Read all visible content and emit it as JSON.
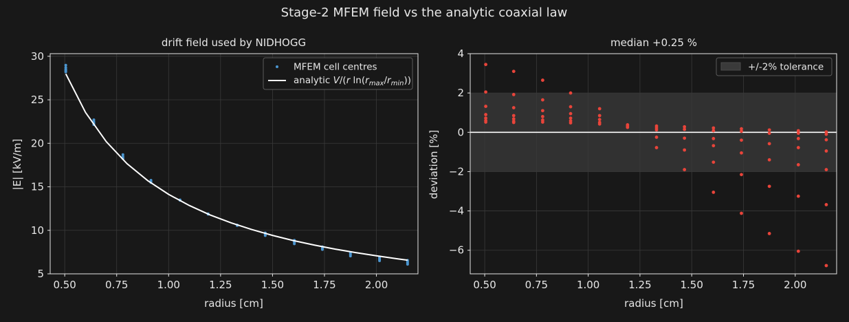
{
  "figure": {
    "suptitle": "Stage-2 MFEM field vs the analytic coaxial law",
    "colors": {
      "background": "#181818",
      "points_left": "#4b95cf",
      "points_right": "#e8443a",
      "line": "#ffffff",
      "band": "#3a3a3a",
      "grid": "#3a3a3a",
      "spine": "#e6e6e6"
    }
  },
  "chart_data": [
    {
      "type": "scatter",
      "title": "drift field used by NIDHOGG",
      "xlabel": "radius [cm]",
      "ylabel": "|E| [kV/m]",
      "xlim": [
        0.43,
        2.2
      ],
      "ylim": [
        5,
        30.3
      ],
      "xticks": [
        0.5,
        0.75,
        1.0,
        1.25,
        1.5,
        1.75,
        2.0
      ],
      "xtick_labels": [
        "0.50",
        "0.75",
        "1.00",
        "1.25",
        "1.50",
        "1.75",
        "2.00"
      ],
      "yticks": [
        5,
        10,
        15,
        20,
        25,
        30
      ],
      "ytick_labels": [
        "5",
        "10",
        "15",
        "20",
        "25",
        "30"
      ],
      "grid": true,
      "legend_position": "top-right",
      "legend": [
        "MFEM cell centres",
        "analytic V/(r ln(r_max/r_min))"
      ],
      "scatter_points": [
        [
          0.505,
          28.98
        ],
        [
          0.505,
          28.7
        ],
        [
          0.505,
          28.5
        ],
        [
          0.505,
          28.4
        ],
        [
          0.505,
          28.3
        ],
        [
          0.505,
          28.2
        ],
        [
          0.64,
          22.7
        ],
        [
          0.64,
          22.5
        ],
        [
          0.64,
          22.35
        ],
        [
          0.64,
          22.25
        ],
        [
          0.64,
          22.15
        ],
        [
          0.78,
          18.7
        ],
        [
          0.78,
          18.5
        ],
        [
          0.78,
          18.35
        ],
        [
          0.78,
          18.25
        ],
        [
          0.915,
          15.75
        ],
        [
          0.915,
          15.6
        ],
        [
          0.915,
          15.5
        ],
        [
          1.055,
          13.5
        ],
        [
          1.055,
          13.45
        ],
        [
          1.19,
          11.9
        ],
        [
          1.19,
          11.85
        ],
        [
          1.33,
          10.6
        ],
        [
          1.33,
          10.55
        ],
        [
          1.465,
          9.7
        ],
        [
          1.465,
          9.6
        ],
        [
          1.465,
          9.5
        ],
        [
          1.465,
          9.4
        ],
        [
          1.605,
          8.85
        ],
        [
          1.605,
          8.75
        ],
        [
          1.605,
          8.6
        ],
        [
          1.605,
          8.45
        ],
        [
          1.74,
          8.1
        ],
        [
          1.74,
          8.0
        ],
        [
          1.74,
          7.9
        ],
        [
          1.74,
          7.8
        ],
        [
          1.875,
          7.45
        ],
        [
          1.875,
          7.3
        ],
        [
          1.875,
          7.2
        ],
        [
          1.875,
          7.05
        ],
        [
          2.015,
          6.95
        ],
        [
          2.015,
          6.8
        ],
        [
          2.015,
          6.65
        ],
        [
          2.015,
          6.5
        ],
        [
          2.15,
          6.55
        ],
        [
          2.15,
          6.4
        ],
        [
          2.15,
          6.25
        ],
        [
          2.15,
          6.1
        ]
      ],
      "analytic_line": {
        "x": [
          0.505,
          0.6,
          0.7,
          0.8,
          0.9,
          1.0,
          1.1,
          1.2,
          1.3,
          1.4,
          1.5,
          1.6,
          1.7,
          1.8,
          1.9,
          2.0,
          2.1,
          2.15
        ],
        "y": [
          27.98,
          23.55,
          20.19,
          17.66,
          15.7,
          14.13,
          12.85,
          11.77,
          10.87,
          10.09,
          9.42,
          8.83,
          8.31,
          7.85,
          7.44,
          7.07,
          6.73,
          6.57
        ]
      }
    },
    {
      "type": "scatter",
      "title": "median +0.25 %",
      "xlabel": "radius [cm]",
      "ylabel": "deviation [%]",
      "xlim": [
        0.43,
        2.2
      ],
      "ylim": [
        -7.2,
        4.0
      ],
      "xticks": [
        0.5,
        0.75,
        1.0,
        1.25,
        1.5,
        1.75,
        2.0
      ],
      "xtick_labels": [
        "0.50",
        "0.75",
        "1.00",
        "1.25",
        "1.50",
        "1.75",
        "2.00"
      ],
      "yticks": [
        -6,
        -4,
        -2,
        0,
        2,
        4
      ],
      "ytick_labels": [
        "−6",
        "−4",
        "−2",
        "0",
        "2",
        "4"
      ],
      "grid": true,
      "legend_position": "top-right",
      "legend": [
        "+/-2% tolerance"
      ],
      "tolerance_band": [
        -2,
        2
      ],
      "zero_line": 0,
      "scatter_points": [
        [
          0.505,
          3.45
        ],
        [
          0.505,
          2.05
        ],
        [
          0.505,
          1.32
        ],
        [
          0.505,
          0.9
        ],
        [
          0.505,
          0.72
        ],
        [
          0.505,
          0.6
        ],
        [
          0.505,
          0.52
        ],
        [
          0.64,
          3.1
        ],
        [
          0.64,
          1.92
        ],
        [
          0.64,
          1.25
        ],
        [
          0.64,
          0.85
        ],
        [
          0.64,
          0.68
        ],
        [
          0.64,
          0.56
        ],
        [
          0.64,
          0.5
        ],
        [
          0.78,
          2.65
        ],
        [
          0.78,
          1.65
        ],
        [
          0.78,
          1.1
        ],
        [
          0.78,
          0.8
        ],
        [
          0.78,
          0.62
        ],
        [
          0.78,
          0.52
        ],
        [
          0.915,
          2.0
        ],
        [
          0.915,
          1.3
        ],
        [
          0.915,
          0.95
        ],
        [
          0.915,
          0.72
        ],
        [
          0.915,
          0.58
        ],
        [
          0.915,
          0.48
        ],
        [
          1.055,
          1.2
        ],
        [
          1.055,
          0.85
        ],
        [
          1.055,
          0.65
        ],
        [
          1.055,
          0.5
        ],
        [
          1.055,
          0.42
        ],
        [
          1.19,
          0.38
        ],
        [
          1.19,
          0.32
        ],
        [
          1.19,
          0.25
        ],
        [
          1.33,
          0.32
        ],
        [
          1.33,
          0.22
        ],
        [
          1.33,
          0.12
        ],
        [
          1.33,
          -0.25
        ],
        [
          1.33,
          -0.78
        ],
        [
          1.465,
          0.28
        ],
        [
          1.465,
          0.15
        ],
        [
          1.465,
          -0.3
        ],
        [
          1.465,
          -0.9
        ],
        [
          1.465,
          -1.9
        ],
        [
          1.605,
          0.22
        ],
        [
          1.605,
          0.08
        ],
        [
          1.605,
          -0.32
        ],
        [
          1.605,
          -0.68
        ],
        [
          1.605,
          -1.52
        ],
        [
          1.605,
          -3.05
        ],
        [
          1.74,
          0.18
        ],
        [
          1.74,
          0.05
        ],
        [
          1.74,
          -0.4
        ],
        [
          1.74,
          -1.05
        ],
        [
          1.74,
          -2.15
        ],
        [
          1.74,
          -4.12
        ],
        [
          1.875,
          0.12
        ],
        [
          1.875,
          -0.05
        ],
        [
          1.875,
          -0.58
        ],
        [
          1.875,
          -1.4
        ],
        [
          1.875,
          -2.75
        ],
        [
          1.875,
          -5.15
        ],
        [
          2.015,
          0.08
        ],
        [
          2.015,
          -0.05
        ],
        [
          2.015,
          -0.32
        ],
        [
          2.015,
          -0.78
        ],
        [
          2.015,
          -1.65
        ],
        [
          2.015,
          -3.25
        ],
        [
          2.015,
          -6.05
        ],
        [
          2.15,
          0.02
        ],
        [
          2.15,
          -0.1
        ],
        [
          2.15,
          -0.38
        ],
        [
          2.15,
          -0.95
        ],
        [
          2.15,
          -1.9
        ],
        [
          2.15,
          -3.68
        ],
        [
          2.15,
          -6.78
        ]
      ]
    }
  ]
}
